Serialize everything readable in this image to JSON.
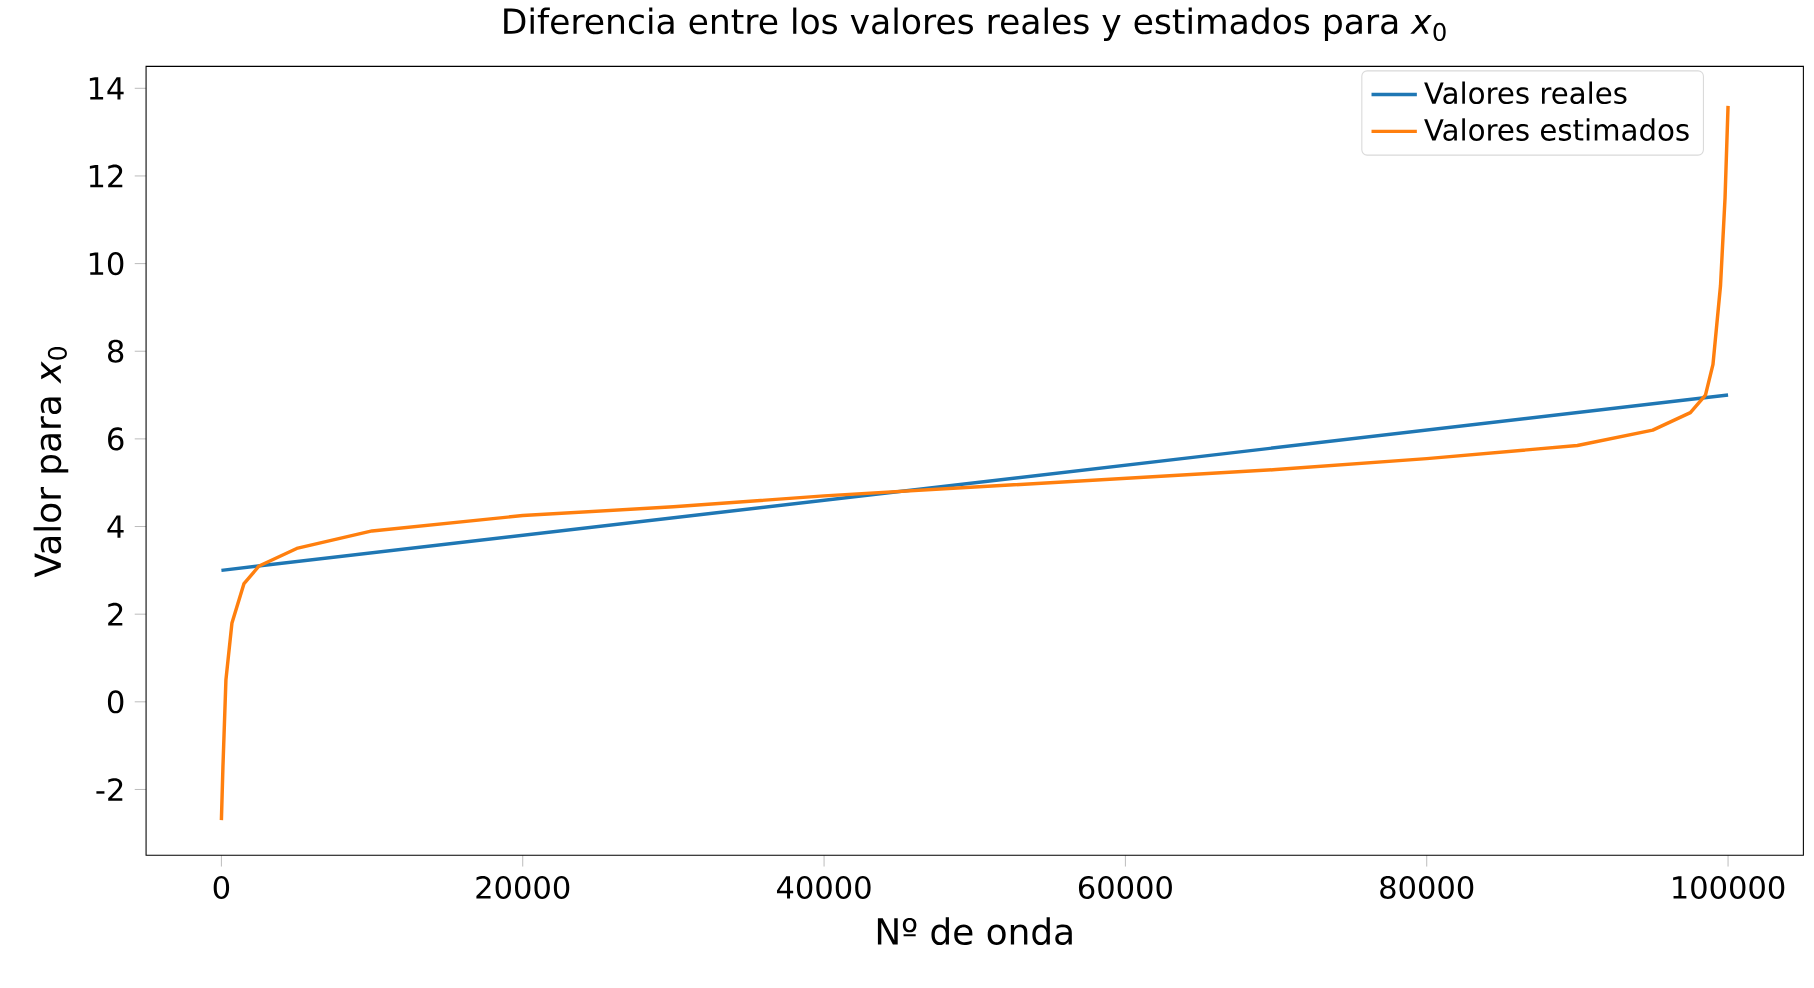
{
  "chart_data": {
    "type": "line",
    "title": "Diferencia entre los valores reales y estimados para *x*$_{0}$",
    "xlabel": "Nº de onda",
    "ylabel": "Valor para *x*$_{0}$",
    "xlim": [
      -5000,
      105000
    ],
    "ylim": [
      -3.5,
      14.5
    ],
    "xticks": [
      0,
      20000,
      40000,
      60000,
      80000,
      100000
    ],
    "yticks": [
      -2,
      0,
      2,
      4,
      6,
      8,
      10,
      12,
      14
    ],
    "grid": false,
    "legend": "top right",
    "series": [
      {
        "name": "Valores reales",
        "color": "#1f77b4",
        "x": [
          0,
          100000
        ],
        "values": [
          3,
          7
        ]
      },
      {
        "name": "Valores estimados",
        "color": "#ff7f0e",
        "x": [
          0,
          100,
          300,
          700,
          1500,
          2500,
          5000,
          10000,
          20000,
          30000,
          40000,
          50000,
          60000,
          70000,
          80000,
          90000,
          95000,
          97500,
          98500,
          99000,
          99500,
          99800,
          100000
        ],
        "values": [
          -2.7,
          -1.5,
          0.5,
          1.8,
          2.7,
          3.1,
          3.5,
          3.9,
          4.25,
          4.45,
          4.7,
          4.9,
          5.1,
          5.3,
          5.55,
          5.85,
          6.2,
          6.6,
          7.0,
          7.7,
          9.5,
          11.5,
          13.6
        ]
      }
    ]
  }
}
